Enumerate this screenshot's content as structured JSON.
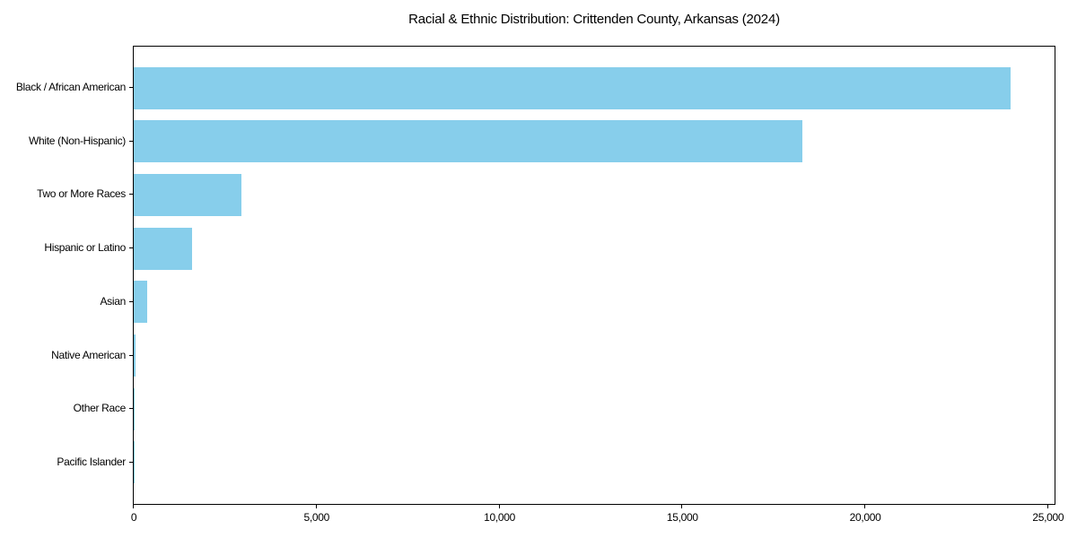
{
  "colors": {
    "bar": "#87CEEB",
    "axis": "#000000",
    "text": "#000000",
    "background": "#ffffff"
  },
  "chart_data": {
    "type": "bar",
    "orientation": "horizontal",
    "title": "Racial & Ethnic Distribution: Crittenden County, Arkansas (2024)",
    "xlabel": "",
    "ylabel": "",
    "categories": [
      "Black / African American",
      "White (Non-Hispanic)",
      "Two or More Races",
      "Hispanic or Latino",
      "Asian",
      "Native American",
      "Other Race",
      "Pacific Islander"
    ],
    "values": [
      24000,
      18300,
      2950,
      1600,
      380,
      50,
      15,
      5
    ],
    "xlim": [
      0,
      25200
    ],
    "x_ticks": [
      {
        "value": 0,
        "label": "0"
      },
      {
        "value": 5000,
        "label": "5,000"
      },
      {
        "value": 10000,
        "label": "10,000"
      },
      {
        "value": 15000,
        "label": "15,000"
      },
      {
        "value": 20000,
        "label": "20,000"
      },
      {
        "value": 25000,
        "label": "25,000"
      }
    ],
    "grid": false,
    "legend": false
  }
}
